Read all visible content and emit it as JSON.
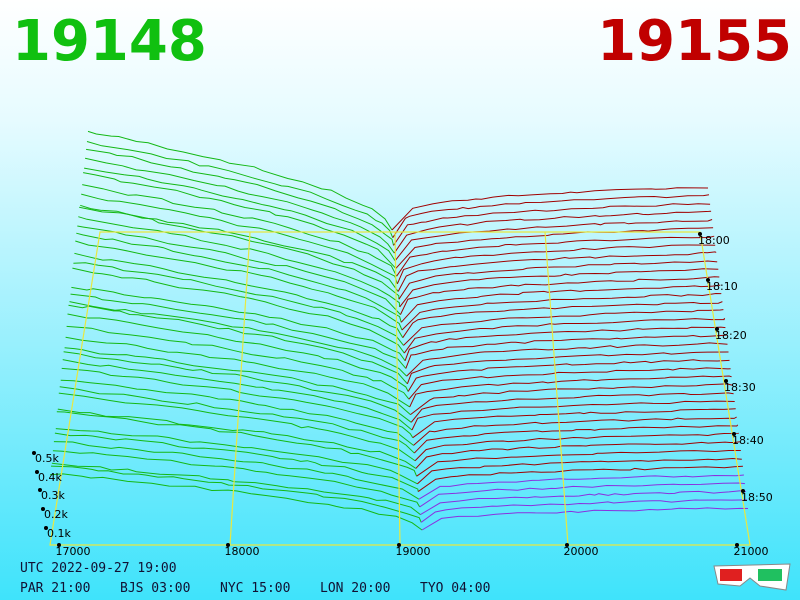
{
  "header": {
    "bid": "19148",
    "ask": "19155"
  },
  "price_axis": {
    "labels": [
      "17000",
      "18000",
      "19000",
      "20000",
      "21000"
    ]
  },
  "depth_axis": {
    "labels": [
      "0.1k",
      "0.2k",
      "0.3k",
      "0.4k",
      "0.5k"
    ]
  },
  "time_axis": {
    "labels": [
      "18:00",
      "18:10",
      "18:20",
      "18:30",
      "18:40",
      "18:50"
    ]
  },
  "footer": {
    "utc": "UTC 2022-09-27 19:00",
    "zones": [
      "PAR 21:00",
      "BJS 03:00",
      "NYC 15:00",
      "LON 20:00",
      "TYO 04:00"
    ]
  }
}
